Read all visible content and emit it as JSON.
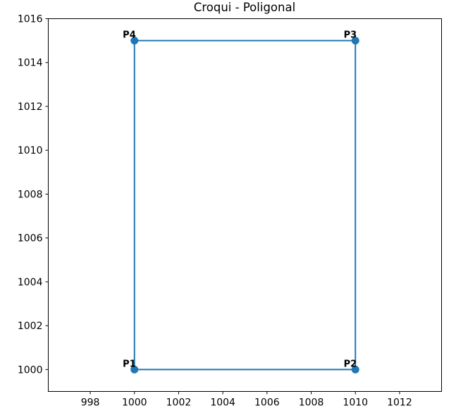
{
  "chart_data": {
    "type": "line",
    "title": "Croqui - Poligonal",
    "xlabel": "",
    "ylabel": "",
    "xlim": [
      996.1,
      1013.9
    ],
    "ylim": [
      999.0,
      1016.0
    ],
    "aspect": "equal",
    "grid": false,
    "x_ticks": [
      998,
      1000,
      1002,
      1004,
      1006,
      1008,
      1010,
      1012
    ],
    "x_tick_labels": [
      "998",
      "1000",
      "1002",
      "1004",
      "1006",
      "1008",
      "1010",
      "1012"
    ],
    "y_ticks": [
      1000,
      1002,
      1004,
      1006,
      1008,
      1010,
      1012,
      1014,
      1016
    ],
    "y_tick_labels": [
      "1000",
      "1002",
      "1004",
      "1006",
      "1008",
      "1010",
      "1012",
      "1014",
      "1016"
    ],
    "line_color": "#1f77b4",
    "closed": true,
    "points": [
      {
        "label": "P1",
        "x": 1000,
        "y": 1000
      },
      {
        "label": "P2",
        "x": 1010,
        "y": 1000
      },
      {
        "label": "P3",
        "x": 1010,
        "y": 1015
      },
      {
        "label": "P4",
        "x": 1000,
        "y": 1015
      }
    ]
  }
}
